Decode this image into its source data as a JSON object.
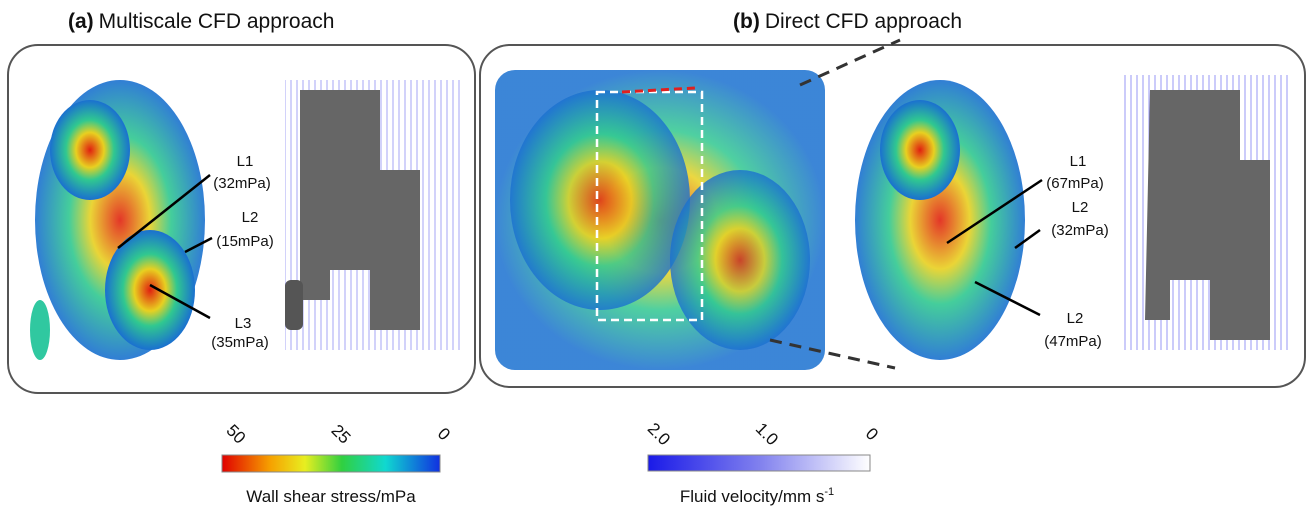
{
  "panels": [
    {
      "tag": "(a)",
      "title": "Multiscale CFD approach",
      "labels": [
        {
          "name": "L1",
          "value": "(32mPa)"
        },
        {
          "name": "L2",
          "value": "(15mPa)"
        },
        {
          "name": "L3",
          "value": "(35mPa)"
        }
      ]
    },
    {
      "tag": "(b)",
      "title": "Direct CFD approach",
      "labels": [
        {
          "name": "L1",
          "value": "(67mPa)"
        },
        {
          "name": "L2",
          "value": "(32mPa)"
        },
        {
          "name": "L2",
          "value": "(47mPa)"
        }
      ]
    }
  ],
  "colorbars": [
    {
      "ticks": [
        "50",
        "25",
        "0"
      ],
      "label": "Wall shear stress/mPa"
    },
    {
      "ticks": [
        "2.0",
        "1.0",
        "0"
      ],
      "label": "Fluid velocity/mm s",
      "label_sup": "-1"
    }
  ]
}
